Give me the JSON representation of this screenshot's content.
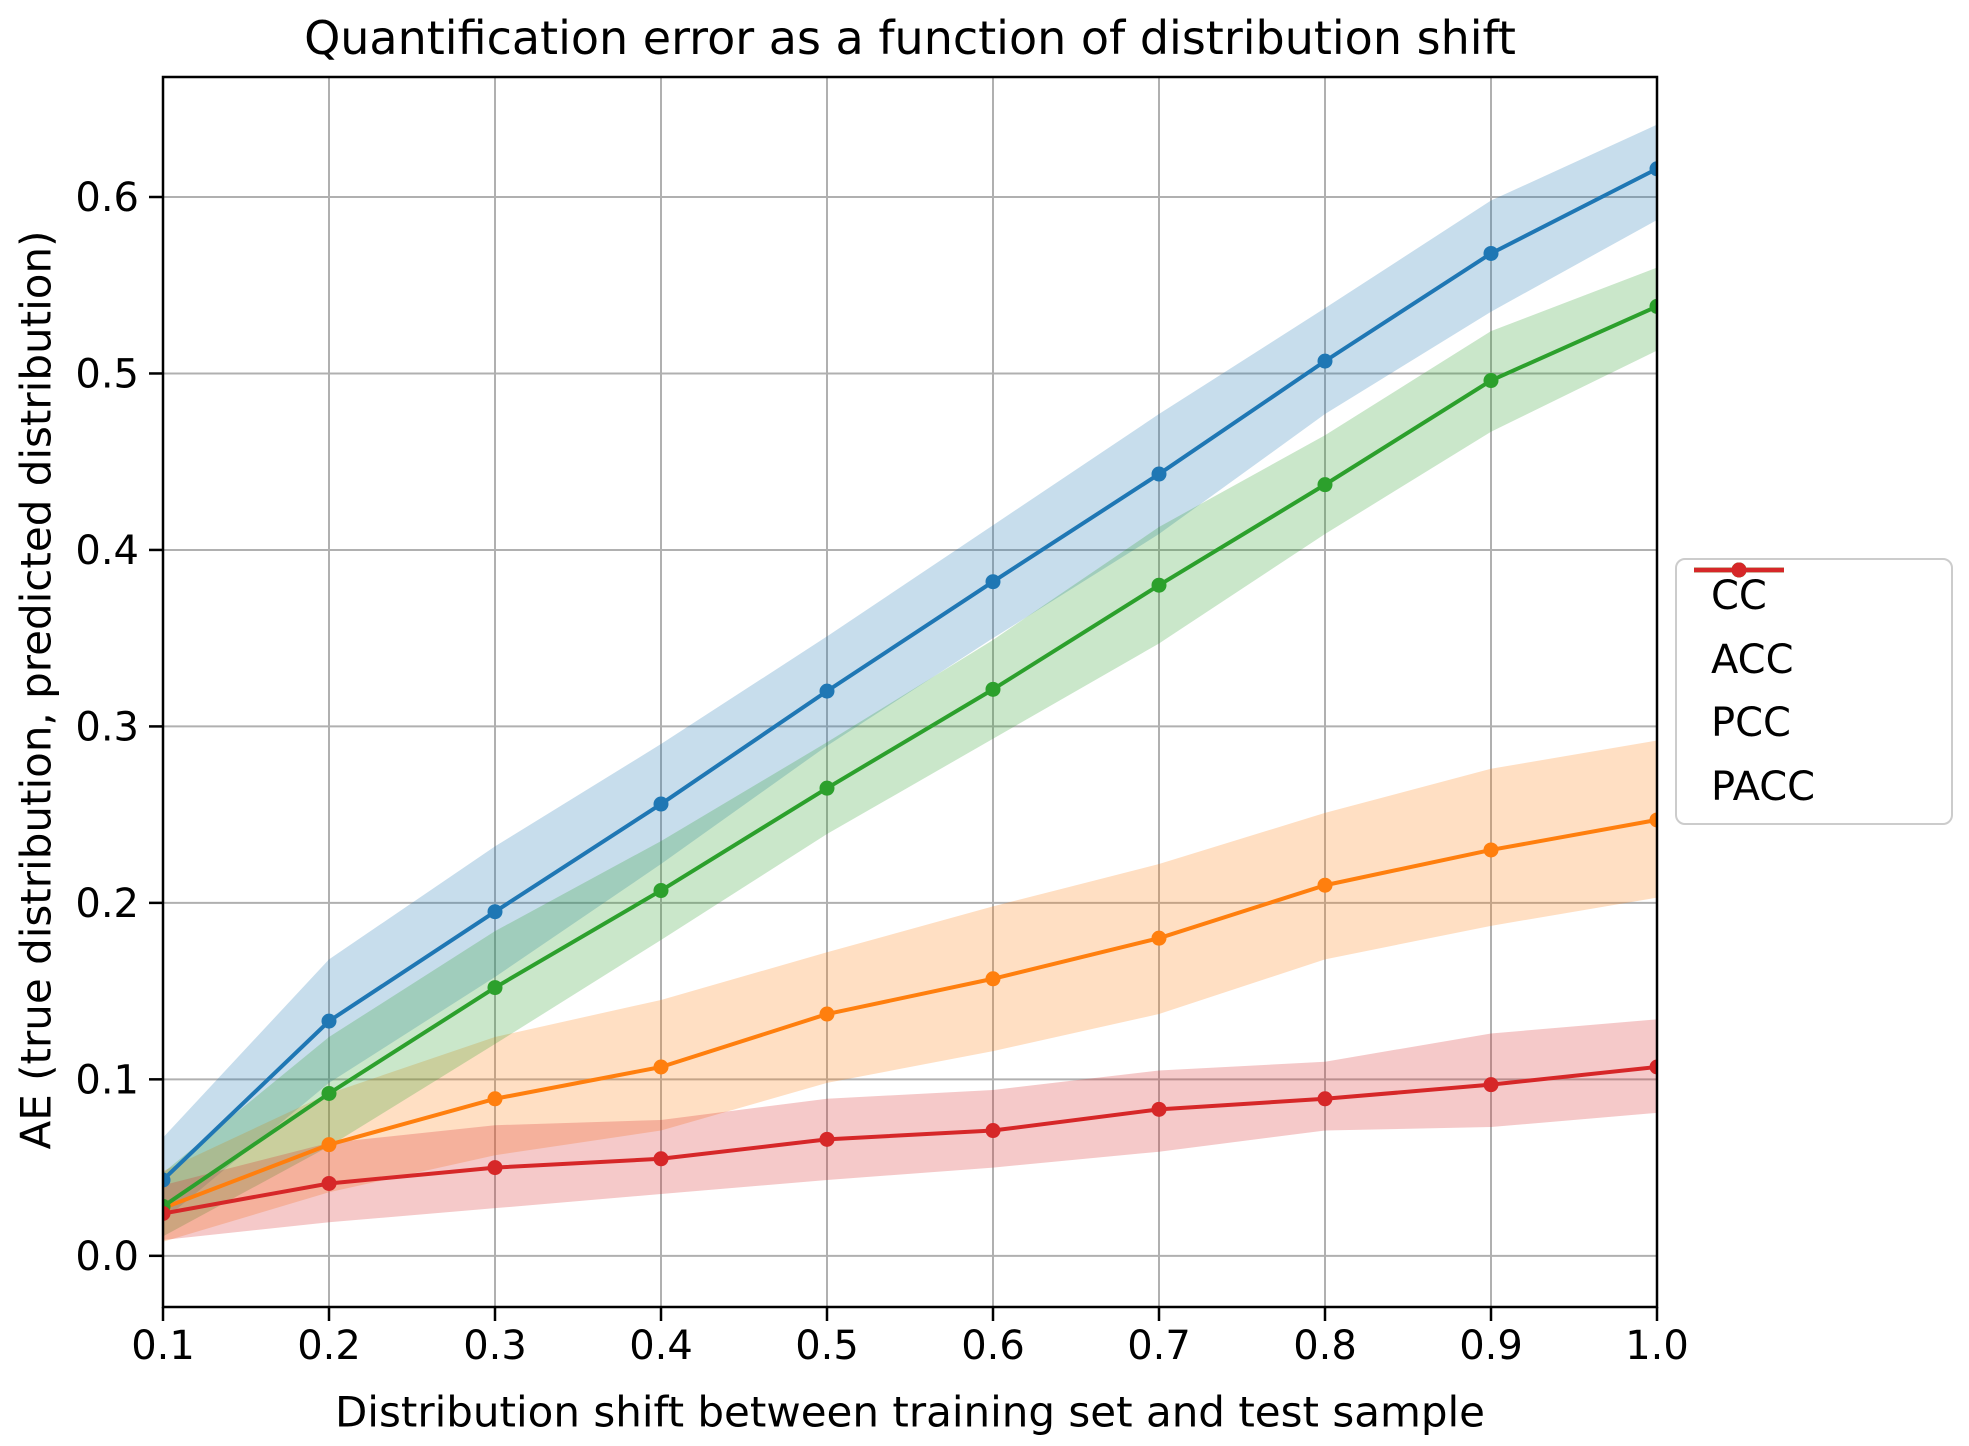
{
  "chart_data": {
    "type": "line",
    "title": "Quantification error as a function of distribution shift",
    "xlabel": "Distribution shift between training set and test sample",
    "ylabel": "AE (true distribution, predicted distribution)",
    "x": [
      0.1,
      0.2,
      0.3,
      0.4,
      0.5,
      0.6,
      0.7,
      0.8,
      0.9,
      1.0
    ],
    "xtick_labels": [
      "0.1",
      "0.2",
      "0.3",
      "0.4",
      "0.5",
      "0.6",
      "0.7",
      "0.8",
      "0.9",
      "1.0"
    ],
    "ytick_values": [
      0.0,
      0.1,
      0.2,
      0.3,
      0.4,
      0.5,
      0.6
    ],
    "ytick_labels": [
      "0.0",
      "0.1",
      "0.2",
      "0.3",
      "0.4",
      "0.5",
      "0.6"
    ],
    "xlim": [
      0.1,
      1.0
    ],
    "ylim": [
      -0.029,
      0.668
    ],
    "grid": true,
    "grid_color": "#b0b0b0",
    "spine_color": "#000000",
    "band_opacity": 0.25,
    "marker": "circle",
    "legend_position": "outside-right",
    "series": [
      {
        "name": "CC",
        "color": "#1f77b4",
        "values": [
          0.043,
          0.133,
          0.195,
          0.256,
          0.32,
          0.382,
          0.443,
          0.507,
          0.568,
          0.616
        ],
        "band_lower": [
          0.02,
          0.098,
          0.158,
          0.222,
          0.289,
          0.35,
          0.409,
          0.477,
          0.535,
          0.587
        ],
        "band_upper": [
          0.067,
          0.168,
          0.232,
          0.29,
          0.351,
          0.414,
          0.477,
          0.537,
          0.598,
          0.641
        ]
      },
      {
        "name": "ACC",
        "color": "#ff7f0e",
        "values": [
          0.027,
          0.063,
          0.089,
          0.107,
          0.137,
          0.157,
          0.18,
          0.21,
          0.23,
          0.247
        ],
        "band_lower": [
          0.008,
          0.036,
          0.057,
          0.071,
          0.098,
          0.116,
          0.137,
          0.168,
          0.187,
          0.203
        ],
        "band_upper": [
          0.048,
          0.092,
          0.124,
          0.145,
          0.172,
          0.198,
          0.222,
          0.251,
          0.276,
          0.292
        ]
      },
      {
        "name": "PCC",
        "color": "#2ca02c",
        "values": [
          0.028,
          0.092,
          0.152,
          0.207,
          0.265,
          0.321,
          0.38,
          0.437,
          0.496,
          0.538
        ],
        "band_lower": [
          0.011,
          0.062,
          0.12,
          0.179,
          0.239,
          0.293,
          0.347,
          0.409,
          0.467,
          0.513
        ],
        "band_upper": [
          0.047,
          0.124,
          0.184,
          0.235,
          0.291,
          0.349,
          0.413,
          0.465,
          0.524,
          0.56
        ]
      },
      {
        "name": "PACC",
        "color": "#d62728",
        "values": [
          0.024,
          0.041,
          0.05,
          0.055,
          0.066,
          0.071,
          0.083,
          0.089,
          0.097,
          0.107
        ],
        "band_lower": [
          0.009,
          0.019,
          0.027,
          0.035,
          0.043,
          0.05,
          0.059,
          0.071,
          0.073,
          0.081
        ],
        "band_upper": [
          0.04,
          0.064,
          0.074,
          0.077,
          0.089,
          0.094,
          0.105,
          0.11,
          0.126,
          0.134
        ]
      }
    ]
  }
}
